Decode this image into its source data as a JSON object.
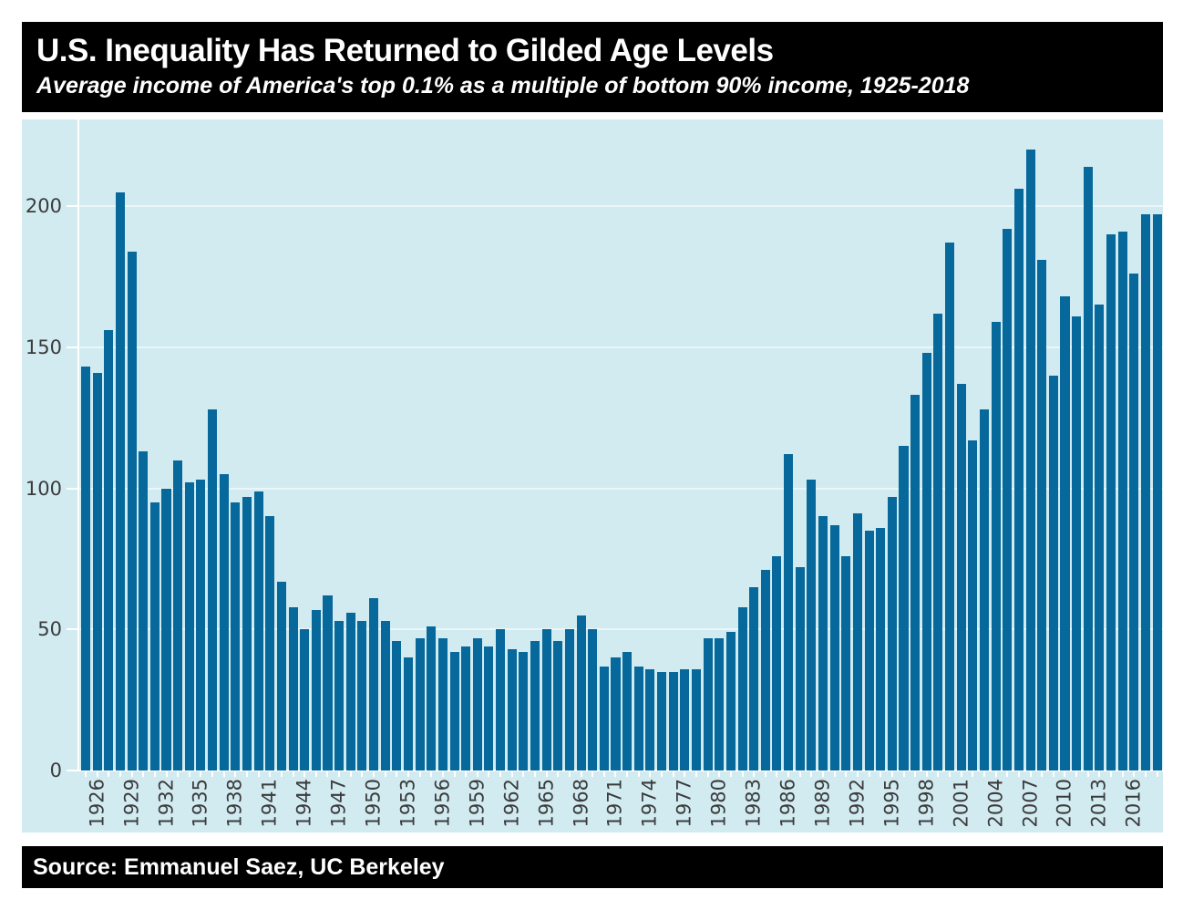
{
  "header": {
    "title": "U.S. Inequality Has Returned to Gilded Age Levels",
    "subtitle": "Average income of America's top 0.1% as a multiple of bottom 90% income, 1925-2018"
  },
  "footer": {
    "source": "Source: Emmanuel Saez, UC Berkeley"
  },
  "chart_data": {
    "type": "bar",
    "title": "U.S. Inequality Has Returned to Gilded Age Levels",
    "subtitle": "Average income of America's top 0.1% as a multiple of bottom 90% income, 1925-2018",
    "source": "Source: Emmanuel Saez, UC Berkeley",
    "xlabel": "",
    "ylabel": "",
    "ylim": [
      0,
      231
    ],
    "grid": true,
    "y_ticks": [
      0,
      50,
      100,
      150,
      200
    ],
    "y_tick_labels": [
      "0",
      "50",
      "100",
      "150",
      "200"
    ],
    "x_tick_labels": [
      1926,
      1929,
      1932,
      1935,
      1938,
      1941,
      1944,
      1947,
      1950,
      1953,
      1956,
      1959,
      1962,
      1965,
      1968,
      1971,
      1974,
      1977,
      1980,
      1983,
      1986,
      1989,
      1992,
      1995,
      1998,
      2001,
      2004,
      2007,
      2010,
      2013,
      2016
    ],
    "years": [
      1925,
      1926,
      1927,
      1928,
      1929,
      1930,
      1931,
      1932,
      1933,
      1934,
      1935,
      1936,
      1937,
      1938,
      1939,
      1940,
      1941,
      1942,
      1943,
      1944,
      1945,
      1946,
      1947,
      1948,
      1949,
      1950,
      1951,
      1952,
      1953,
      1954,
      1955,
      1956,
      1957,
      1958,
      1959,
      1960,
      1961,
      1962,
      1963,
      1964,
      1965,
      1966,
      1967,
      1968,
      1969,
      1970,
      1971,
      1972,
      1973,
      1974,
      1975,
      1976,
      1977,
      1978,
      1979,
      1980,
      1981,
      1982,
      1983,
      1984,
      1985,
      1986,
      1987,
      1988,
      1989,
      1990,
      1991,
      1992,
      1993,
      1994,
      1995,
      1996,
      1997,
      1998,
      1999,
      2000,
      2001,
      2002,
      2003,
      2004,
      2005,
      2006,
      2007,
      2008,
      2009,
      2010,
      2011,
      2012,
      2013,
      2014,
      2015,
      2016,
      2017,
      2018
    ],
    "values": [
      143,
      141,
      156,
      205,
      184,
      113,
      95,
      100,
      110,
      102,
      103,
      128,
      105,
      95,
      97,
      99,
      90,
      67,
      58,
      50,
      57,
      62,
      53,
      56,
      53,
      61,
      53,
      46,
      40,
      47,
      51,
      47,
      42,
      44,
      47,
      44,
      50,
      43,
      42,
      46,
      50,
      46,
      50,
      55,
      50,
      37,
      40,
      42,
      37,
      36,
      35,
      35,
      36,
      36,
      47,
      47,
      49,
      58,
      65,
      71,
      76,
      112,
      72,
      103,
      90,
      87,
      76,
      91,
      85,
      86,
      97,
      115,
      133,
      148,
      162,
      187,
      137,
      117,
      128,
      159,
      192,
      206,
      220,
      181,
      140,
      168,
      161,
      214,
      165,
      190,
      191,
      176,
      197,
      197
    ],
    "colors": {
      "bar": "#07689c",
      "panel_background": "#d1ebf1",
      "gridline": "#ebf6f8",
      "axis_line": "#ffffff",
      "tick_label": "#3b3b3b",
      "band_background": "#000000",
      "band_text": "#ffffff",
      "page_background": "#ffffff"
    },
    "legend": null
  }
}
